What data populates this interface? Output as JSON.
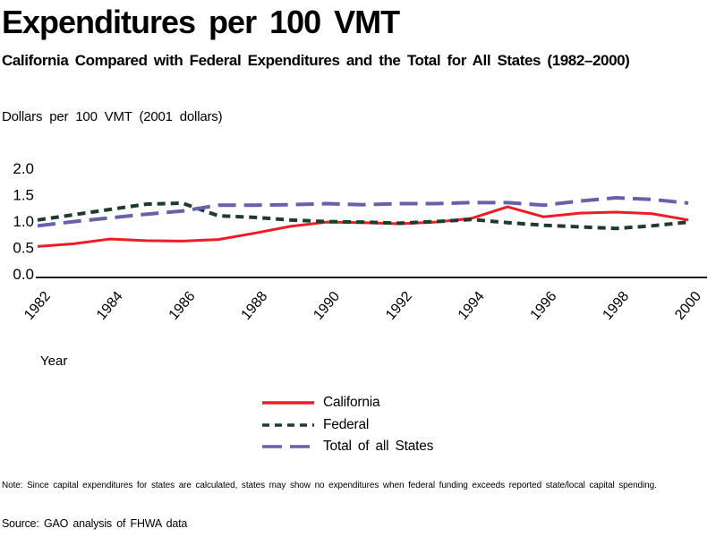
{
  "page": {
    "title": "Expenditures per 100 VMT",
    "subtitle": "California Compared with Federal Expenditures and the Total for All States (1982–2000)",
    "y_axis_unit": "Dollars per 100 VMT (2001 dollars)",
    "x_axis_title": "Year",
    "note": "Note: Since capital expenditures for states are calculated, states may show no expenditures when federal funding exceeds reported state/local capital spending.",
    "source": "Source: GAO analysis of FHWA data"
  },
  "chart_data": {
    "type": "line",
    "title": "Expenditures per 100 VMT",
    "subtitle": "California Compared with Federal Expenditures and the Total for All States (1982–2000)",
    "ylabel": "Dollars per 100 VMT (2001 dollars)",
    "xlabel": "Year",
    "grid": false,
    "legend_position": "bottom-center",
    "ylim": [
      0.0,
      2.0
    ],
    "yticks": [
      "0.0",
      "0.5",
      "1.0",
      "1.5",
      "2.0"
    ],
    "x": [
      1982,
      1983,
      1984,
      1985,
      1986,
      1987,
      1988,
      1989,
      1990,
      1991,
      1992,
      1993,
      1994,
      1995,
      1996,
      1997,
      1998,
      1999,
      2000
    ],
    "xticks": [
      "1982",
      "1984",
      "1986",
      "1988",
      "1990",
      "1992",
      "1994",
      "1996",
      "1998",
      "2000"
    ],
    "axis_color": "#000000",
    "series": [
      {
        "name": "California",
        "color": "#ee1c25",
        "style": "solid",
        "values": [
          0.52,
          0.57,
          0.66,
          0.63,
          0.62,
          0.65,
          0.77,
          0.9,
          0.98,
          0.97,
          0.95,
          0.98,
          1.05,
          1.27,
          1.08,
          1.15,
          1.17,
          1.14,
          1.02
        ]
      },
      {
        "name": "Federal",
        "color": "#1f3b2c",
        "style": "dashed",
        "values": [
          1.02,
          1.12,
          1.22,
          1.32,
          1.34,
          1.1,
          1.07,
          1.02,
          0.99,
          0.98,
          0.96,
          0.99,
          1.03,
          0.97,
          0.92,
          0.89,
          0.86,
          0.91,
          0.98
        ]
      },
      {
        "name": "Total of all States",
        "color": "#6661a9",
        "style": "longdash",
        "values": [
          0.91,
          0.99,
          1.06,
          1.13,
          1.19,
          1.3,
          1.3,
          1.31,
          1.33,
          1.31,
          1.33,
          1.33,
          1.35,
          1.35,
          1.3,
          1.38,
          1.44,
          1.41,
          1.34
        ]
      }
    ]
  }
}
